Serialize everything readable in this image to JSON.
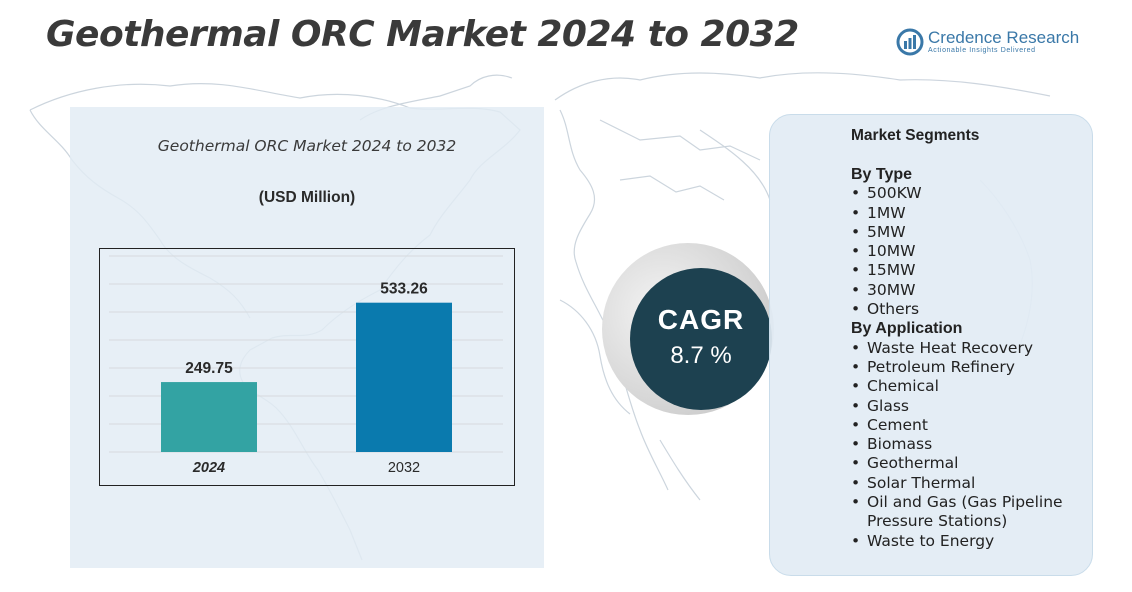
{
  "header": {
    "title": "Geothermal ORC Market 2024 to 2032",
    "brand_name": "Credence Research",
    "brand_tagline": "Actionable Insights Delivered"
  },
  "chart": {
    "title": "Geothermal ORC Market 2024 to 2032",
    "unit": "(USD Million)"
  },
  "cagr": {
    "label": "CAGR",
    "value": "8.7 %"
  },
  "segments": {
    "title": "Market Segments",
    "groups": [
      {
        "name": "By Type",
        "items": [
          "500KW",
          "1MW",
          "5MW",
          "10MW",
          "15MW",
          "30MW",
          "Others"
        ]
      },
      {
        "name": "By Application",
        "items": [
          "Waste Heat Recovery",
          "Petroleum Refinery",
          "Chemical",
          "Glass",
          "Cement",
          "Biomass",
          "Geothermal",
          "Solar Thermal",
          "Oil and Gas (Gas Pipeline Pressure Stations)",
          "Waste to Energy"
        ]
      }
    ]
  },
  "chart_data": {
    "type": "bar",
    "title": "Geothermal ORC Market 2024 to 2032",
    "ylabel": "(USD Million)",
    "xlabel": "",
    "categories": [
      "2024",
      "2032"
    ],
    "values": [
      249.75,
      533.26
    ],
    "value_labels": [
      "249.75",
      "533.26"
    ],
    "bar_colors": [
      "#33a3a3",
      "#0a7aae"
    ],
    "ylim": [
      0,
      700
    ],
    "grid": true,
    "legend": "none"
  },
  "colors": {
    "title_text": "#3a3a3a",
    "panel_bg": "#e2ecf4",
    "cagr_bg": "#1d4150",
    "brand": "#3a78a8",
    "map": "#c8d2da"
  }
}
